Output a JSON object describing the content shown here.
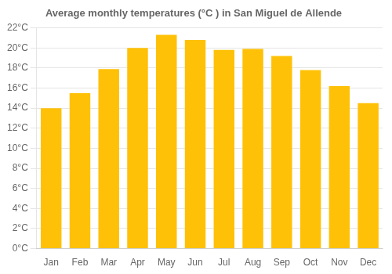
{
  "chart_data": {
    "type": "bar",
    "title": "Average monthly temperatures (°C ) in San Miguel de Allende",
    "categories": [
      "Jan",
      "Feb",
      "Mar",
      "Apr",
      "May",
      "Jun",
      "Jul",
      "Aug",
      "Sep",
      "Oct",
      "Nov",
      "Dec"
    ],
    "values": [
      14.0,
      15.5,
      17.9,
      20.0,
      21.3,
      20.8,
      19.8,
      19.9,
      19.2,
      17.8,
      16.2,
      14.5
    ],
    "color": "#FFC107",
    "ylim": [
      0,
      22
    ],
    "yticks": [
      {
        "value": 0,
        "label": "0°C"
      },
      {
        "value": 2,
        "label": "2°C"
      },
      {
        "value": 4,
        "label": "4°C"
      },
      {
        "value": 6,
        "label": "6°C"
      },
      {
        "value": 8,
        "label": "8°C"
      },
      {
        "value": 10,
        "label": "10°C"
      },
      {
        "value": 12,
        "label": "12°C"
      },
      {
        "value": 14,
        "label": "14°C"
      },
      {
        "value": 16,
        "label": "16°C"
      },
      {
        "value": 18,
        "label": "18°C"
      },
      {
        "value": 20,
        "label": "20°C"
      },
      {
        "value": 22,
        "label": "22°C"
      }
    ],
    "grid": true
  }
}
